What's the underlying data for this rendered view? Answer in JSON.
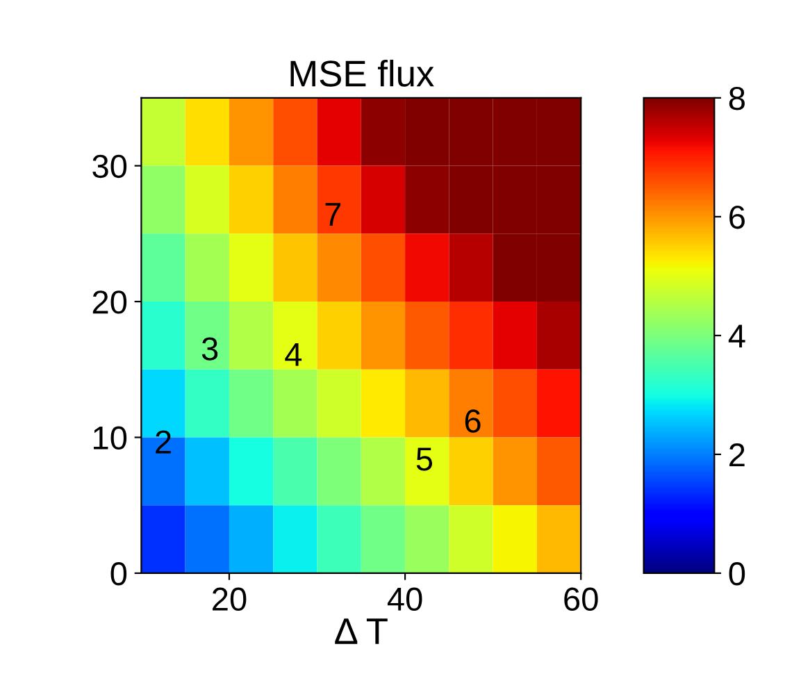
{
  "chart_data": {
    "type": "heatmap",
    "title": "MSE flux",
    "xlabel": "Δ T",
    "x": [
      12.5,
      17.5,
      22.5,
      27.5,
      32.5,
      37.5,
      42.5,
      47.5,
      52.5,
      57.5
    ],
    "y": [
      32.5,
      27.5,
      22.5,
      17.5,
      12.5,
      7.5,
      2.5
    ],
    "xlim": [
      10,
      60
    ],
    "xticks": [
      20,
      40,
      60
    ],
    "ylim": [
      0,
      35
    ],
    "yticks": [
      0,
      10,
      20,
      30
    ],
    "cells": [
      [
        4.7,
        5.4,
        6.0,
        6.6,
        7.3,
        7.9,
        8,
        8,
        8,
        8
      ],
      [
        4.2,
        4.9,
        5.5,
        6.2,
        6.8,
        7.4,
        7.9,
        8,
        8,
        8
      ],
      [
        3.7,
        4.4,
        5.0,
        5.6,
        6.1,
        6.6,
        7.2,
        7.6,
        8,
        8
      ],
      [
        3.2,
        3.9,
        4.5,
        5.0,
        5.5,
        6.0,
        6.5,
        6.9,
        7.3,
        7.7
      ],
      [
        2.7,
        3.3,
        3.9,
        4.4,
        4.8,
        5.3,
        5.7,
        6.2,
        6.6,
        7.1
      ],
      [
        1.9,
        2.5,
        3.0,
        3.5,
        4.0,
        4.5,
        5.0,
        5.5,
        6.0,
        6.5
      ],
      [
        1.4,
        1.9,
        2.4,
        2.9,
        3.4,
        3.9,
        4.3,
        4.8,
        5.2,
        5.7
      ]
    ],
    "clim": [
      0,
      8
    ],
    "cticks": [
      0,
      2,
      4,
      6,
      8
    ],
    "annotations": [
      "2",
      "3",
      "4",
      "5",
      "6",
      "7"
    ]
  }
}
